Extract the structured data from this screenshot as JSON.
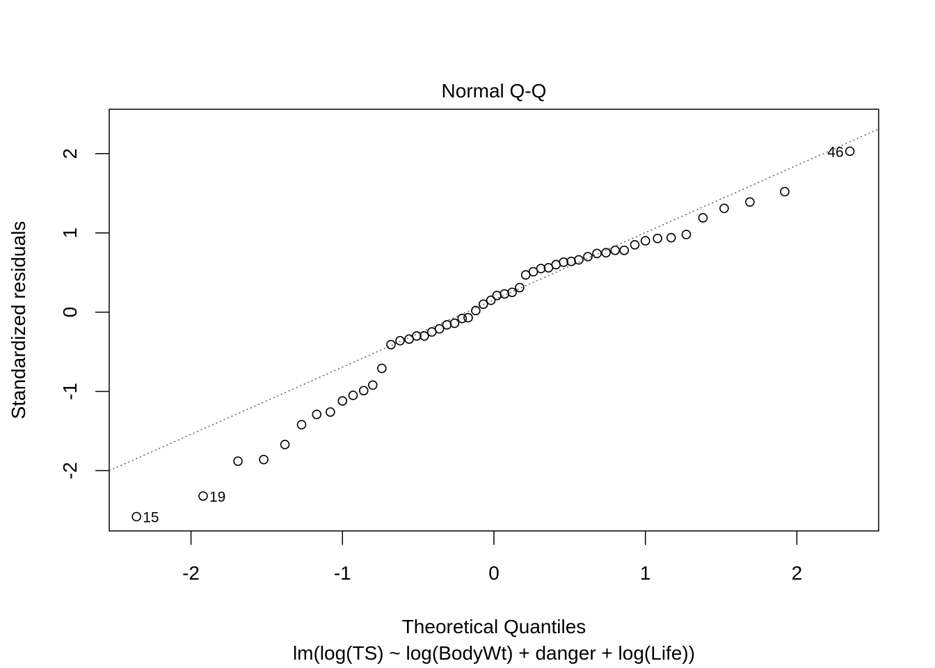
{
  "chart_data": {
    "type": "scatter",
    "title": "Normal Q-Q",
    "xlabel": "Theoretical Quantiles",
    "sublabel": "lm(log(TS) ~ log(BodyWt) + danger + log(Life))",
    "ylabel": "Standardized residuals",
    "xlim": [
      -2.54,
      2.54
    ],
    "ylim": [
      -2.76,
      2.56
    ],
    "xticks": [
      -2,
      -1,
      0,
      1,
      2
    ],
    "yticks": [
      -2,
      -1,
      0,
      1,
      2
    ],
    "xtick_labels": [
      "-2",
      "-1",
      "0",
      "1",
      "2"
    ],
    "ytick_labels": [
      "-2",
      "-1",
      "0",
      "1",
      "2"
    ],
    "grid": false,
    "reference_line": {
      "style": "dotted",
      "points": [
        [
          -2.54,
          -2.0
        ],
        [
          2.54,
          2.31
        ]
      ]
    },
    "point_labels": [
      {
        "text": "15",
        "x": -2.36,
        "y": -2.58,
        "side": "right"
      },
      {
        "text": "19",
        "x": -1.92,
        "y": -2.32,
        "side": "right"
      },
      {
        "text": "46",
        "x": 2.35,
        "y": 2.03,
        "side": "left"
      }
    ],
    "points": [
      [
        -2.36,
        -2.58
      ],
      [
        -1.92,
        -2.32
      ],
      [
        -1.69,
        -1.88
      ],
      [
        -1.52,
        -1.86
      ],
      [
        -1.38,
        -1.67
      ],
      [
        -1.27,
        -1.42
      ],
      [
        -1.17,
        -1.29
      ],
      [
        -1.08,
        -1.26
      ],
      [
        -1.0,
        -1.12
      ],
      [
        -0.93,
        -1.05
      ],
      [
        -0.86,
        -0.99
      ],
      [
        -0.8,
        -0.92
      ],
      [
        -0.74,
        -0.71
      ],
      [
        -0.68,
        -0.41
      ],
      [
        -0.62,
        -0.36
      ],
      [
        -0.56,
        -0.34
      ],
      [
        -0.51,
        -0.3
      ],
      [
        -0.46,
        -0.3
      ],
      [
        -0.41,
        -0.25
      ],
      [
        -0.36,
        -0.21
      ],
      [
        -0.31,
        -0.16
      ],
      [
        -0.26,
        -0.14
      ],
      [
        -0.21,
        -0.08
      ],
      [
        -0.17,
        -0.07
      ],
      [
        -0.12,
        0.02
      ],
      [
        -0.07,
        0.1
      ],
      [
        -0.02,
        0.15
      ],
      [
        0.02,
        0.21
      ],
      [
        0.07,
        0.23
      ],
      [
        0.12,
        0.25
      ],
      [
        0.17,
        0.31
      ],
      [
        0.21,
        0.47
      ],
      [
        0.26,
        0.51
      ],
      [
        0.31,
        0.55
      ],
      [
        0.36,
        0.56
      ],
      [
        0.41,
        0.6
      ],
      [
        0.46,
        0.63
      ],
      [
        0.51,
        0.64
      ],
      [
        0.56,
        0.66
      ],
      [
        0.62,
        0.7
      ],
      [
        0.68,
        0.74
      ],
      [
        0.74,
        0.75
      ],
      [
        0.8,
        0.78
      ],
      [
        0.86,
        0.78
      ],
      [
        0.93,
        0.85
      ],
      [
        1.0,
        0.9
      ],
      [
        1.08,
        0.93
      ],
      [
        1.17,
        0.94
      ],
      [
        1.27,
        0.98
      ],
      [
        1.38,
        1.19
      ],
      [
        1.52,
        1.31
      ],
      [
        1.69,
        1.39
      ],
      [
        1.92,
        1.52
      ],
      [
        2.35,
        2.03
      ]
    ]
  }
}
